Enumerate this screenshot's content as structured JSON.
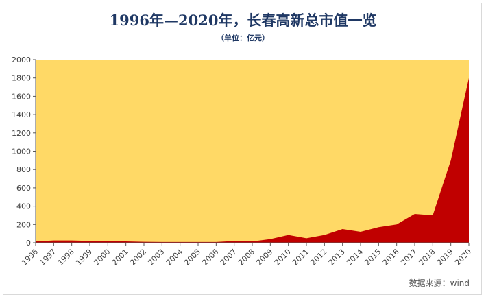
{
  "chart_data": {
    "type": "area",
    "title": "1996年—2020年，长春高新总市值一览",
    "subtitle": "（单位：亿元）",
    "source": "数据来源：wind",
    "xlabel": "",
    "ylabel": "",
    "ylim": [
      0,
      2000
    ],
    "yticks": [
      "0",
      "200",
      "400",
      "600",
      "800",
      "1000",
      "1200",
      "1400",
      "1600",
      "1800",
      "2000"
    ],
    "categories": [
      "1996",
      "1997",
      "1998",
      "1999",
      "2000",
      "2001",
      "2002",
      "2003",
      "2004",
      "2005",
      "2006",
      "2007",
      "2008",
      "2009",
      "2010",
      "2011",
      "2012",
      "2013",
      "2014",
      "2015",
      "2016",
      "2017",
      "2018",
      "2019",
      "2020"
    ],
    "series": [
      {
        "name": "总市值",
        "values": [
          15,
          25,
          25,
          20,
          22,
          15,
          10,
          8,
          8,
          8,
          8,
          20,
          15,
          40,
          85,
          50,
          85,
          150,
          120,
          170,
          200,
          315,
          300,
          900,
          1800
        ]
      }
    ],
    "colors": {
      "plot_background": "#ffd966",
      "area_fill": "#c00000",
      "axis": "#595959",
      "title": "#1f3864"
    }
  }
}
